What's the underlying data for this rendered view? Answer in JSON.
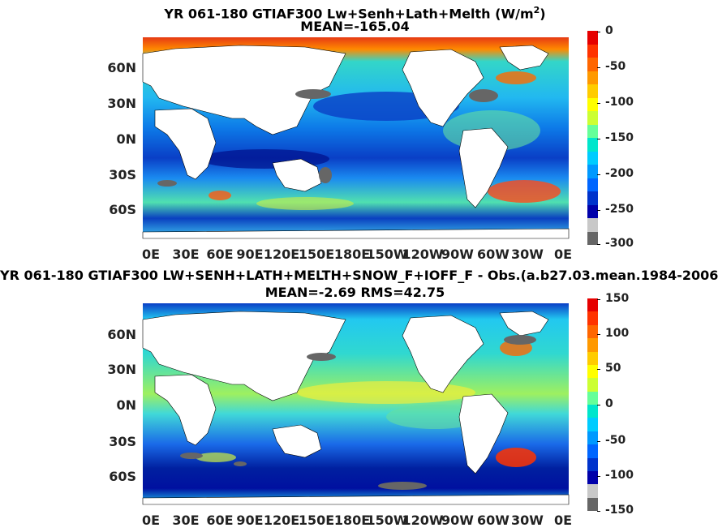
{
  "panels": [
    {
      "title_line1_prefix": "YR 061-180 GTIAF300 Lw+Senh+Lath+Melth (W/m",
      "title_sup": "2",
      "title_line1_suffix": ")",
      "title_line2": "MEAN=-165.04",
      "lat_labels": [
        "60N",
        "30N",
        "0N",
        "30S",
        "60S"
      ],
      "lon_labels": [
        "0E",
        "30E",
        "60E",
        "90E",
        "120E",
        "150E",
        "180E",
        "150W",
        "120W",
        "90W",
        "60W",
        "30W",
        "0E"
      ],
      "colorbar_ticks": [
        "0",
        "-50",
        "-100",
        "-150",
        "-200",
        "-250",
        "-300"
      ],
      "colorbar_colors": [
        "#e60000",
        "#ff3300",
        "#ff6600",
        "#ff9900",
        "#ffcc00",
        "#ffff00",
        "#ccff33",
        "#66ff99",
        "#00e6cc",
        "#00ccff",
        "#0099ff",
        "#0066ff",
        "#0033cc",
        "#0000aa",
        "#c8c8c8",
        "#666666"
      ]
    },
    {
      "title_line1": "YR 061-180 GTIAF300 LW+SENH+LATH+MELTH+SNOW_F+IOFF_F - Obs.(a.b27.03.mean.1984-2006",
      "title_line2": "MEAN=-2.69 RMS=42.75",
      "lat_labels": [
        "60N",
        "30N",
        "0N",
        "30S",
        "60S"
      ],
      "lon_labels": [
        "0E",
        "30E",
        "60E",
        "90E",
        "120E",
        "150E",
        "180E",
        "150W",
        "120W",
        "90W",
        "60W",
        "30W",
        "0E"
      ],
      "colorbar_ticks": [
        "150",
        "100",
        "50",
        "0",
        "-50",
        "-100",
        "-150"
      ],
      "colorbar_colors": [
        "#e60000",
        "#ff3300",
        "#ff6600",
        "#ff9900",
        "#ffcc00",
        "#ffff00",
        "#ccff33",
        "#66ff99",
        "#00e6cc",
        "#00ccff",
        "#0099ff",
        "#0066ff",
        "#0033cc",
        "#0000aa",
        "#c8c8c8",
        "#666666"
      ]
    }
  ]
}
